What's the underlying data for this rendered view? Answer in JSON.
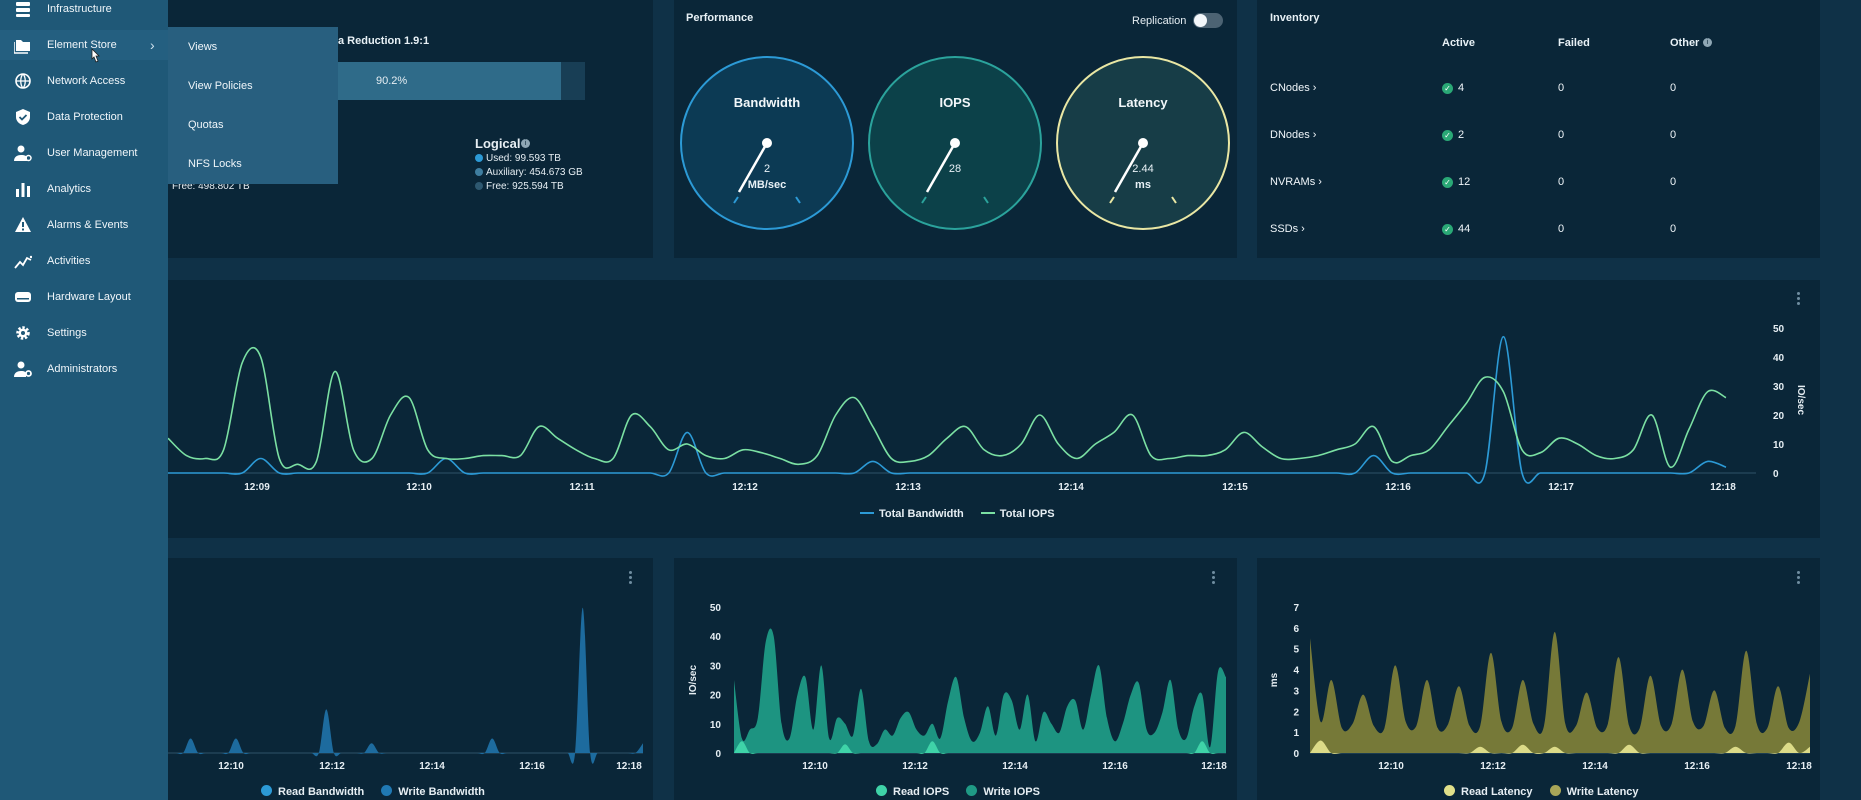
{
  "sidebar": {
    "items": [
      {
        "label": "Infrastructure",
        "icon": "server-stack-icon"
      },
      {
        "label": "Element Store",
        "icon": "folders-icon"
      },
      {
        "label": "Network Access",
        "icon": "globe-icon"
      },
      {
        "label": "Data Protection",
        "icon": "shield-check-icon"
      },
      {
        "label": "User Management",
        "icon": "user-settings-icon"
      },
      {
        "label": "Analytics",
        "icon": "bar-chart-icon"
      },
      {
        "label": "Alarms & Events",
        "icon": "warning-triangle-icon"
      },
      {
        "label": "Activities",
        "icon": "activity-trend-icon"
      },
      {
        "label": "Hardware Layout",
        "icon": "hard-drive-icon"
      },
      {
        "label": "Settings",
        "icon": "gear-icon"
      },
      {
        "label": "Administrators",
        "icon": "admin-user-icon"
      }
    ]
  },
  "flyout": {
    "items": [
      "Views",
      "View Policies",
      "Quotas",
      "NFS Locks"
    ]
  },
  "capacity": {
    "data_reduction": "a Reduction 1.9:1",
    "bar_value": "90.2%",
    "bar_fraction": 0.902,
    "physical_free": "Free: 498.802 TB",
    "logical_title": "Logical",
    "logical_used": "Used: 99.593 TB",
    "logical_aux": "Auxiliary: 454.673 GB",
    "logical_free": "Free: 925.594 TB"
  },
  "performance": {
    "title": "Performance",
    "replication_label": "Replication",
    "replication_on": false,
    "gauges": [
      {
        "title": "Bandwidth",
        "value": "2",
        "unit": "MB/sec",
        "color": "#2c9ad6"
      },
      {
        "title": "IOPS",
        "value": "28",
        "unit": "",
        "color": "#2ba39c"
      },
      {
        "title": "Latency",
        "value": "2.44",
        "unit": "ms",
        "color": "#e9e7a4"
      }
    ]
  },
  "inventory": {
    "title": "Inventory",
    "columns": [
      "Active",
      "Failed",
      "Other"
    ],
    "rows": [
      {
        "name": "CNodes ›",
        "active": "4",
        "failed": "0",
        "other": "0"
      },
      {
        "name": "DNodes ›",
        "active": "2",
        "failed": "0",
        "other": "0"
      },
      {
        "name": "NVRAMs ›",
        "active": "12",
        "failed": "0",
        "other": "0"
      },
      {
        "name": "SSDs ›",
        "active": "44",
        "failed": "0",
        "other": "0"
      }
    ]
  },
  "colors": {
    "bandwidth": "#2c9ad6",
    "iops_line": "#7be0a3",
    "iops_area": "#1f9a85",
    "latency_area": "#8a8a3e",
    "latency_read": "#e1e08a"
  },
  "chart_data": [
    {
      "type": "line",
      "x_ticks": [
        "12:09",
        "12:10",
        "12:11",
        "12:12",
        "12:13",
        "12:14",
        "12:15",
        "12:16",
        "12:17",
        "12:18"
      ],
      "y_right_label": "IO/sec",
      "y_right_ticks": [
        "50",
        "40",
        "30",
        "20",
        "10",
        "0"
      ],
      "ylim": [
        0,
        50
      ],
      "legend": [
        "Total Bandwidth",
        "Total IOPS"
      ],
      "series": [
        {
          "name": "Total Bandwidth",
          "values": [
            0,
            0,
            0,
            0,
            0,
            5,
            0,
            0,
            0,
            0,
            0,
            0,
            0,
            0,
            0,
            5,
            0,
            0,
            0,
            0,
            0,
            0,
            0,
            0,
            0,
            0,
            0,
            0,
            14,
            0,
            0,
            0,
            0,
            0,
            0,
            0,
            0,
            0,
            4,
            0,
            0,
            0,
            0,
            0,
            0,
            0,
            0,
            0,
            0,
            0,
            0,
            0,
            0,
            0,
            0,
            0,
            0,
            0,
            0,
            0,
            0,
            0,
            0,
            0,
            0,
            6,
            0,
            0,
            0,
            0,
            0,
            0,
            47,
            0,
            0,
            0,
            0,
            0,
            0,
            0,
            0,
            0,
            0,
            4,
            2
          ]
        },
        {
          "name": "Total IOPS",
          "values": [
            12,
            6,
            5,
            8,
            38,
            40,
            5,
            3,
            4,
            35,
            8,
            5,
            20,
            26,
            8,
            5,
            5,
            6,
            6,
            6,
            16,
            12,
            8,
            5,
            5,
            20,
            16,
            8,
            10,
            6,
            5,
            8,
            7,
            5,
            3,
            6,
            20,
            26,
            16,
            5,
            4,
            6,
            12,
            16,
            8,
            6,
            10,
            20,
            10,
            5,
            10,
            14,
            20,
            6,
            5,
            6,
            6,
            8,
            14,
            9,
            5,
            5,
            6,
            8,
            10,
            16,
            4,
            6,
            8,
            16,
            24,
            33,
            28,
            8,
            7,
            12,
            10,
            6,
            5,
            8,
            20,
            2,
            15,
            28,
            26
          ]
        }
      ]
    },
    {
      "type": "area",
      "x_ticks": [
        "12:10",
        "12:12",
        "12:14",
        "12:16",
        "12:18"
      ],
      "legend": [
        "Read Bandwidth",
        "Write Bandwidth"
      ],
      "series": [
        {
          "name": "Write Bandwidth",
          "values": [
            0,
            0,
            0,
            3,
            0,
            0,
            0,
            0,
            0,
            3,
            0,
            0,
            0,
            0,
            0,
            0,
            0,
            0,
            0,
            0,
            0,
            9,
            0,
            0,
            0,
            0,
            0,
            2,
            0,
            0,
            0,
            0,
            0,
            0,
            0,
            0,
            0,
            0,
            0,
            0,
            0,
            0,
            0,
            3,
            0,
            0,
            0,
            0,
            0,
            0,
            0,
            0,
            0,
            0,
            0,
            30,
            0,
            0,
            0,
            0,
            0,
            0,
            0,
            2
          ]
        }
      ]
    },
    {
      "type": "area",
      "x_ticks": [
        "12:10",
        "12:12",
        "12:14",
        "12:16",
        "12:18"
      ],
      "ylabel": "IO/sec",
      "y_ticks": [
        "50",
        "40",
        "30",
        "20",
        "10",
        "0"
      ],
      "ylim": [
        0,
        50
      ],
      "legend": [
        "Read IOPS",
        "Write IOPS"
      ],
      "series": [
        {
          "name": "Write IOPS",
          "values": [
            25,
            5,
            8,
            12,
            38,
            40,
            10,
            5,
            20,
            26,
            8,
            30,
            5,
            12,
            10,
            6,
            22,
            4,
            3,
            8,
            6,
            12,
            14,
            8,
            6,
            10,
            5,
            18,
            26,
            12,
            4,
            7,
            16,
            6,
            20,
            18,
            8,
            20,
            4,
            14,
            10,
            7,
            16,
            18,
            8,
            20,
            30,
            12,
            4,
            10,
            20,
            24,
            8,
            7,
            14,
            25,
            8,
            5,
            16,
            20,
            2,
            28,
            26
          ]
        },
        {
          "name": "Read IOPS",
          "values": [
            0,
            4,
            0,
            0,
            0,
            0,
            0,
            0,
            0,
            0,
            0,
            0,
            0,
            0,
            3,
            0,
            0,
            0,
            0,
            0,
            0,
            0,
            0,
            0,
            0,
            4,
            0,
            0,
            0,
            0,
            0,
            0,
            0,
            0,
            0,
            0,
            0,
            0,
            0,
            0,
            0,
            0,
            0,
            0,
            0,
            0,
            0,
            0,
            0,
            0,
            0,
            0,
            0,
            0,
            0,
            0,
            0,
            0,
            0,
            4,
            0,
            0,
            0
          ]
        }
      ]
    },
    {
      "type": "area",
      "x_ticks": [
        "12:10",
        "12:12",
        "12:14",
        "12:16",
        "12:18"
      ],
      "ylabel": "ms",
      "y_ticks": [
        "7",
        "6",
        "5",
        "4",
        "3",
        "2",
        "1",
        "0"
      ],
      "ylim": [
        0,
        7
      ],
      "legend": [
        "Read Latency",
        "Write Latency"
      ],
      "series": [
        {
          "name": "Write Latency",
          "values": [
            5.5,
            1.5,
            3.5,
            1.2,
            1.4,
            2.8,
            1.3,
            1.2,
            4.2,
            1.5,
            1.3,
            3.5,
            1.2,
            1.4,
            3.2,
            1.3,
            1.3,
            4.8,
            1.5,
            1.2,
            3.5,
            1.4,
            1.3,
            5.8,
            1.4,
            1.3,
            2.9,
            1.2,
            1.4,
            4.6,
            1.3,
            1.2,
            3.7,
            1.3,
            1.4,
            4.0,
            1.5,
            1.3,
            3.0,
            1.2,
            1.3,
            4.9,
            1.4,
            1.2,
            3.2,
            1.2,
            1.5,
            3.8
          ]
        },
        {
          "name": "Read Latency",
          "values": [
            0,
            0.6,
            0,
            0,
            0,
            0,
            0,
            0,
            0,
            0,
            0,
            0,
            0,
            0,
            0,
            0,
            0.3,
            0,
            0,
            0,
            0.4,
            0,
            0,
            0.3,
            0,
            0,
            0,
            0,
            0,
            0,
            0.4,
            0,
            0,
            0,
            0,
            0,
            0,
            0,
            0,
            0,
            0.3,
            0,
            0,
            0,
            0,
            0.5,
            0,
            0.3
          ]
        }
      ]
    }
  ]
}
